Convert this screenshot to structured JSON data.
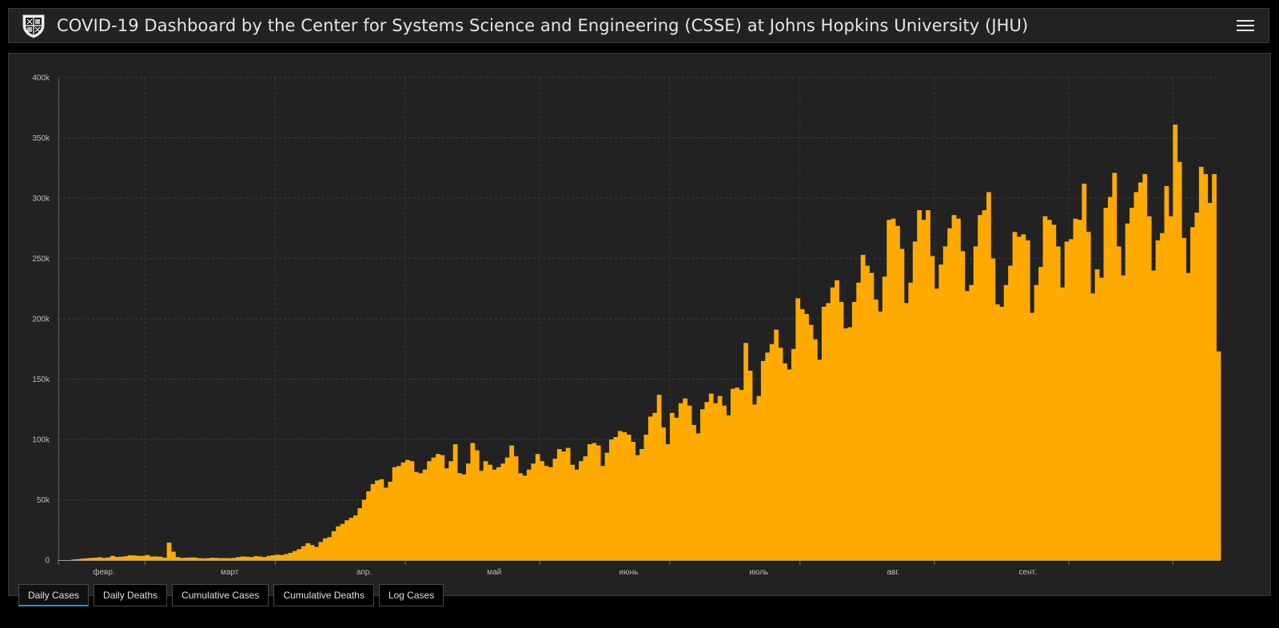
{
  "header": {
    "title": "COVID-19 Dashboard by the Center for Systems Science and Engineering (CSSE) at Johns Hopkins University (JHU)",
    "logo_icon": "jhu-shield-icon",
    "menu_icon": "hamburger-menu-icon"
  },
  "tabs": [
    {
      "label": "Daily Cases",
      "active": true
    },
    {
      "label": "Daily Deaths",
      "active": false
    },
    {
      "label": "Cumulative Cases",
      "active": false
    },
    {
      "label": "Cumulative Deaths",
      "active": false
    },
    {
      "label": "Log Cases",
      "active": false
    }
  ],
  "colors": {
    "bar": "#FFAA00",
    "background": "#222222",
    "active_tab_underline": "#2B8FD8"
  },
  "chart_data": {
    "type": "bar",
    "title": "",
    "xlabel": "",
    "ylabel": "",
    "ylim": [
      0,
      400000
    ],
    "y_ticks": [
      "0",
      "50k",
      "100k",
      "150k",
      "200k",
      "250k",
      "300k",
      "350k",
      "400k"
    ],
    "y_tick_values": [
      0,
      50000,
      100000,
      150000,
      200000,
      250000,
      300000,
      350000,
      400000
    ],
    "x_ticks": [
      "февр.",
      "март",
      "апр.",
      "май",
      "июнь",
      "июль",
      "авг.",
      "сент."
    ],
    "x_tick_day_index": [
      10,
      39,
      70,
      100,
      131,
      161,
      192,
      223
    ],
    "grid": true,
    "series": [
      {
        "name": "",
        "values": [
          0,
          0,
          0,
          500,
          800,
          1200,
          1500,
          1800,
          2000,
          2300,
          1800,
          2200,
          3500,
          2600,
          2800,
          3200,
          4000,
          3800,
          3500,
          3500,
          4200,
          3000,
          3000,
          2800,
          2000,
          14500,
          7000,
          2500,
          1800,
          2000,
          2200,
          2100,
          1600,
          1500,
          1600,
          2000,
          1800,
          1600,
          1700,
          1600,
          1800,
          2500,
          3000,
          2800,
          2500,
          3200,
          3000,
          2500,
          3500,
          4000,
          4500,
          4200,
          5000,
          6000,
          7500,
          9000,
          11500,
          14000,
          12500,
          11000,
          15000,
          18000,
          19000,
          24000,
          28000,
          30000,
          33000,
          35000,
          37000,
          43000,
          50000,
          57000,
          63000,
          66000,
          67000,
          60000,
          65000,
          77000,
          78000,
          81000,
          83000,
          82000,
          73000,
          72000,
          75000,
          82000,
          85000,
          88000,
          87000,
          76000,
          82000,
          96000,
          72000,
          71000,
          80000,
          97000,
          91000,
          74000,
          82000,
          79000,
          75000,
          77000,
          80000,
          85000,
          95000,
          86000,
          72000,
          70000,
          75000,
          80000,
          88000,
          82000,
          78000,
          77000,
          84000,
          92000,
          90000,
          93000,
          79000,
          75000,
          82000,
          86000,
          96000,
          97000,
          95000,
          78000,
          89000,
          100000,
          102000,
          107000,
          106000,
          104000,
          98000,
          87000,
          92000,
          104000,
          119000,
          122000,
          137000,
          110000,
          96000,
          122000,
          118000,
          130000,
          134000,
          128000,
          112000,
          105000,
          125000,
          131000,
          138000,
          130000,
          136000,
          128000,
          120000,
          142000,
          143000,
          141000,
          180000,
          157000,
          129000,
          136000,
          165000,
          172000,
          179000,
          191000,
          176000,
          163000,
          158000,
          175000,
          217000,
          208000,
          204000,
          195000,
          183000,
          166000,
          210000,
          213000,
          226000,
          232000,
          214000,
          192000,
          193000,
          214000,
          230000,
          253000,
          244000,
          238000,
          216000,
          206000,
          235000,
          282000,
          283000,
          277000,
          258000,
          213000,
          230000,
          264000,
          290000,
          282000,
          290000,
          252000,
          225000,
          245000,
          260000,
          275000,
          286000,
          283000,
          256000,
          223000,
          228000,
          260000,
          286000,
          290000,
          305000,
          250000,
          212000,
          210000,
          228000,
          244000,
          272000,
          268000,
          270000,
          265000,
          205000,
          228000,
          243000,
          285000,
          282000,
          278000,
          260000,
          226000,
          264000,
          266000,
          283000,
          282000,
          312000,
          272000,
          221000,
          241000,
          234000,
          292000,
          301000,
          321000,
          260000,
          236000,
          279000,
          292000,
          305000,
          313000,
          320000,
          285000,
          240000,
          265000,
          271000,
          310000,
          285000,
          361000,
          330000,
          267000,
          238000,
          276000,
          288000,
          326000,
          320000,
          296000,
          320000,
          173000
        ]
      }
    ]
  }
}
